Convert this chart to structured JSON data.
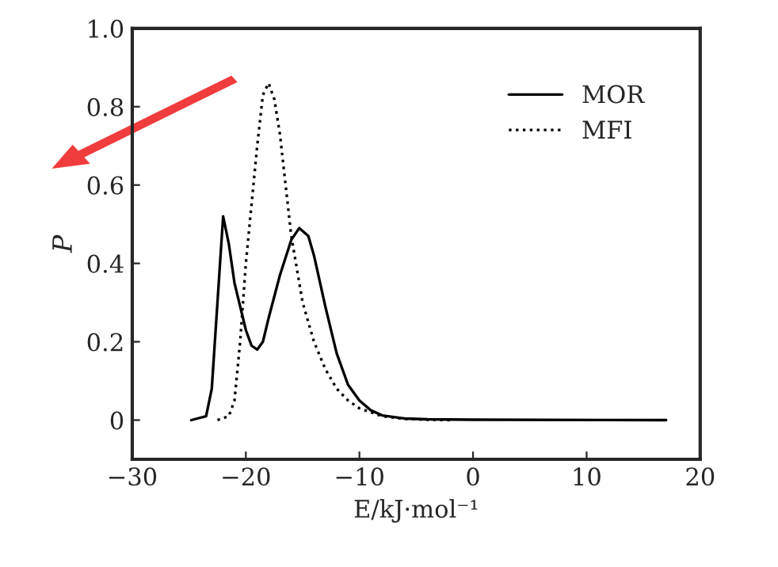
{
  "chart_data": {
    "type": "line",
    "xlabel": "E/kJ·mol⁻¹",
    "ylabel": "P",
    "xlim": [
      -30,
      20
    ],
    "ylim": [
      -0.1,
      1.0
    ],
    "xticks": [
      {
        "value": -30,
        "label": "−30"
      },
      {
        "value": -20,
        "label": "−20"
      },
      {
        "value": -10,
        "label": "−10"
      },
      0,
      10,
      20
    ],
    "yticks": [
      0,
      0.2,
      0.4,
      0.6,
      0.8,
      {
        "value": 1.0,
        "label": "1.0"
      }
    ],
    "legend": "top right",
    "grid": false,
    "series": [
      {
        "name": "MOR",
        "color": "#000000",
        "line_style": "solid",
        "x": [
          -24.8,
          -23.5,
          -23,
          -22.5,
          -22,
          -21.5,
          -21,
          -20,
          -19.5,
          -19,
          -18.5,
          -18,
          -17,
          -16,
          -15.3,
          -14.5,
          -14,
          -13,
          -12,
          -11,
          -10,
          -9,
          -8,
          -6,
          -4,
          0,
          17
        ],
        "values": [
          0,
          0.01,
          0.08,
          0.3,
          0.52,
          0.45,
          0.35,
          0.23,
          0.19,
          0.18,
          0.2,
          0.26,
          0.37,
          0.46,
          0.49,
          0.47,
          0.42,
          0.29,
          0.17,
          0.09,
          0.05,
          0.025,
          0.012,
          0.004,
          0.002,
          0.001,
          0
        ]
      },
      {
        "name": "MFI",
        "color": "#000000",
        "line_style": "dotted",
        "x": [
          -22.5,
          -21.5,
          -21,
          -20.5,
          -20,
          -19,
          -18.5,
          -18,
          -17.5,
          -17,
          -16.5,
          -16,
          -15,
          -14,
          -13,
          -12,
          -11,
          -10,
          -8,
          -6,
          -4,
          -2
        ],
        "values": [
          0,
          0.01,
          0.05,
          0.2,
          0.4,
          0.7,
          0.83,
          0.86,
          0.82,
          0.73,
          0.6,
          0.47,
          0.3,
          0.2,
          0.13,
          0.08,
          0.05,
          0.03,
          0.01,
          0.003,
          0.001,
          0
        ]
      }
    ]
  }
}
